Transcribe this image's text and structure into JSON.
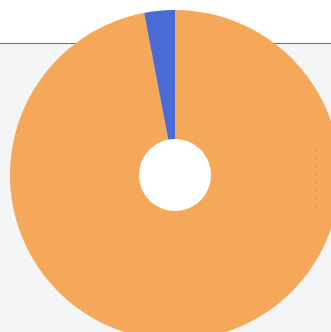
{
  "colors": {
    "page_background": "#f6f7f9",
    "rule_line": "#4a6bd6",
    "slice_major": "#f6a85a",
    "slice_minor": "#4a6bd6",
    "hole": "#ffffff"
  },
  "chart_data": {
    "type": "pie",
    "variant": "donut",
    "title": "",
    "legend": "none",
    "slices": [
      {
        "value": 3,
        "color": "#4a6bd6"
      },
      {
        "value": 97,
        "color": "#f6a85a"
      }
    ]
  }
}
